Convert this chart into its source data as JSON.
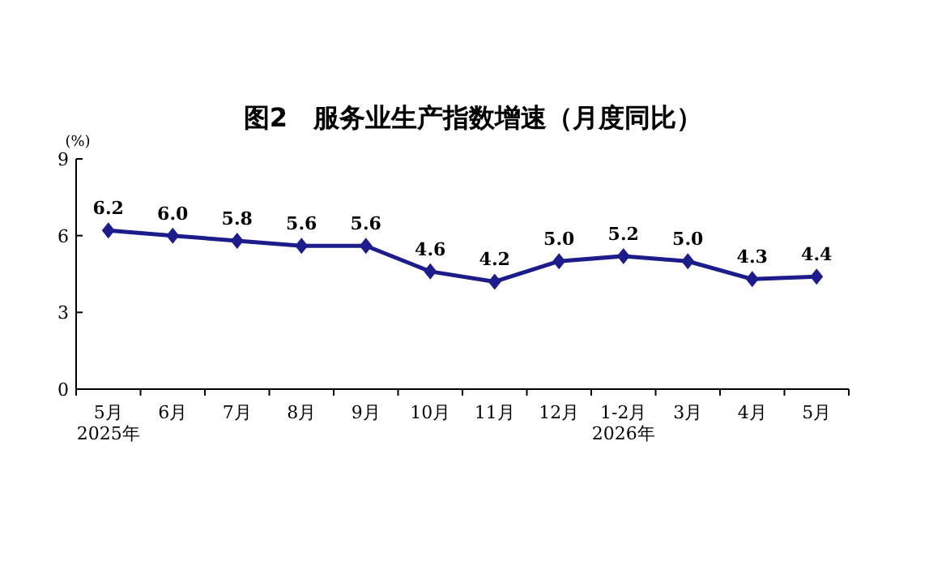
{
  "chart_data": {
    "type": "line",
    "title": "图2　服务业生产指数增速（月度同比）",
    "ylabel": "(%)",
    "categories": [
      "5月\n2025年",
      "6月",
      "7月",
      "8月",
      "9月",
      "10月",
      "11月",
      "12月",
      "1-2月\n2026年",
      "3月",
      "4月",
      "5月"
    ],
    "series": [
      {
        "color": "#1c1c8a",
        "values": [
          6.2,
          6.0,
          5.8,
          5.6,
          5.6,
          4.6,
          4.2,
          5.0,
          5.2,
          5.0,
          4.3,
          4.4
        ],
        "value_labels": [
          "6.2",
          "6.0",
          "5.8",
          "5.6",
          "5.6",
          "4.6",
          "4.2",
          "5.0",
          "5.2",
          "5.0",
          "4.3",
          "4.4"
        ]
      }
    ],
    "ylim": [
      0,
      9
    ],
    "yticks": [
      0,
      3,
      6,
      9
    ],
    "marker": "diamond",
    "line_style": "solid",
    "grid": false
  }
}
